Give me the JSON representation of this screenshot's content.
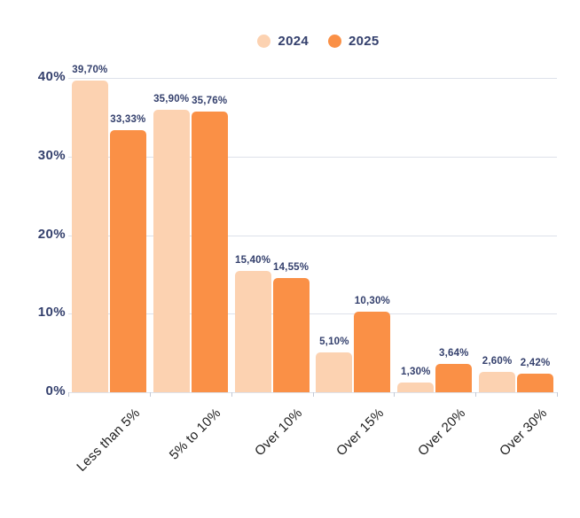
{
  "legend": {
    "items": [
      {
        "label": "2024",
        "swatch": "legend-swatch-2024"
      },
      {
        "label": "2025",
        "swatch": "legend-swatch-2025"
      }
    ],
    "position": "top-center"
  },
  "chart_data": {
    "type": "bar",
    "title": "",
    "xlabel": "",
    "ylabel": "",
    "categories": [
      "Less than 5%",
      "5% to 10%",
      "Over 10%",
      "Over 15%",
      "Over 20%",
      "Over 30%"
    ],
    "series": [
      {
        "name": "2024",
        "color": "#fcd2b1",
        "values": [
          39.7,
          35.9,
          15.4,
          5.1,
          1.3,
          2.6
        ],
        "data_labels": [
          "39,70%",
          "35,90%",
          "15,40%",
          "5,10%",
          "1,30%",
          "2,60%"
        ]
      },
      {
        "name": "2025",
        "color": "#fa9046",
        "values": [
          33.33,
          35.76,
          14.55,
          10.3,
          3.64,
          2.42
        ],
        "data_labels": [
          "33,33%",
          "35,76%",
          "14,55%",
          "10,30%",
          "3,64%",
          "2,42%"
        ]
      }
    ],
    "y_axis": {
      "tick_labels": [
        "0%",
        "10%",
        "20%",
        "30%",
        "40%"
      ],
      "tick_values": [
        0,
        10,
        20,
        30,
        40
      ],
      "lim": [
        0,
        40
      ]
    },
    "grid": true,
    "legend_position": "top",
    "colors": {
      "value_label": "#34406d",
      "y_tick_label": "#34406d",
      "category_label": "#1c1c1c",
      "gridline": "#dde1ea",
      "axis_tick": "#c3c9d6",
      "background": "#ffffff"
    }
  }
}
